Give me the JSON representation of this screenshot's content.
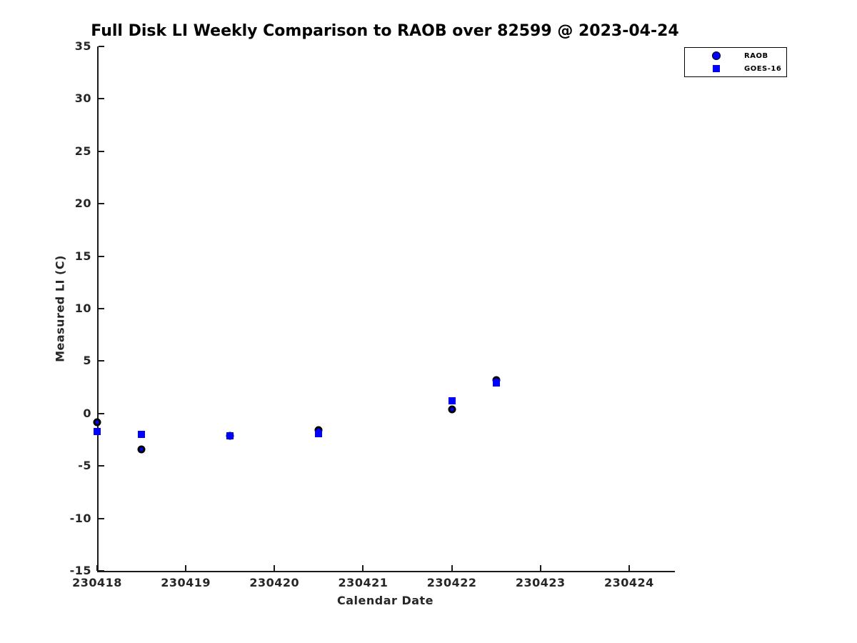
{
  "chart_data": {
    "type": "scatter",
    "title": "Full Disk LI Weekly Comparison to RAOB over 82599 @ 2023-04-24",
    "xlabel": "Calendar Date",
    "ylabel": "Measured LI (C)",
    "xlim": [
      230418,
      230424.5
    ],
    "ylim": [
      -15,
      35
    ],
    "xticks": [
      230418,
      230419,
      230420,
      230421,
      230422,
      230423,
      230424
    ],
    "yticks": [
      35,
      30,
      25,
      20,
      15,
      10,
      5,
      0,
      -5,
      -10,
      -15
    ],
    "grid": false,
    "legend_position": "top-right",
    "series": [
      {
        "name": "RAOB",
        "marker": "circle",
        "fill": "#0000ff",
        "edge": "#000000",
        "x": [
          230418.0,
          230418.5,
          230419.5,
          230420.5,
          230422.0,
          230422.5
        ],
        "y": [
          -0.8,
          -3.4,
          -2.1,
          -1.6,
          0.4,
          3.2
        ]
      },
      {
        "name": "GOES-16",
        "marker": "square",
        "fill": "#0000ff",
        "edge": "#0000ff",
        "x": [
          230418.0,
          230418.5,
          230419.5,
          230420.5,
          230422.0,
          230422.5
        ],
        "y": [
          -1.7,
          -2.0,
          -2.1,
          -1.9,
          1.2,
          2.9
        ]
      }
    ]
  },
  "colors": {
    "background": "#ffffff",
    "axis": "#1a1a1a",
    "tick_text": "#262626",
    "title_text": "#000000",
    "marker_blue": "#0000ff",
    "marker_edge_black": "#000000",
    "legend_border": "#000000"
  }
}
